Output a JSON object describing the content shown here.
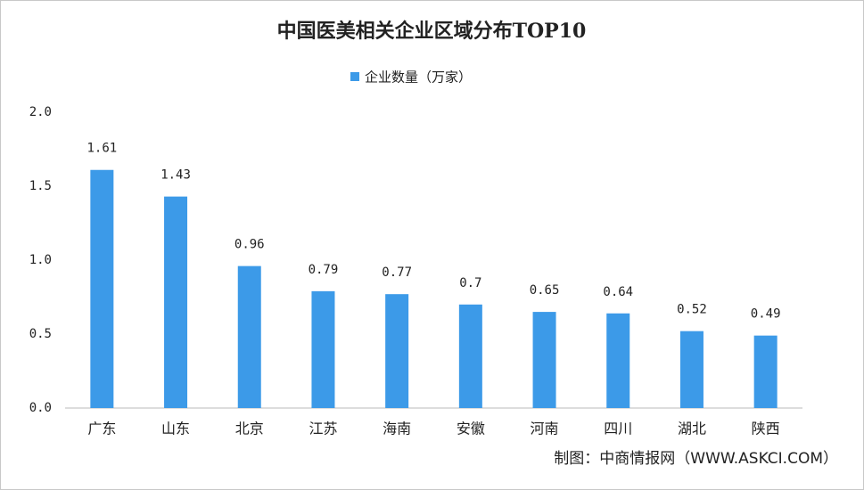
{
  "chart_data": {
    "type": "bar",
    "title": "中国医美相关企业区域分布TOP10",
    "categories": [
      "广东",
      "山东",
      "北京",
      "江苏",
      "海南",
      "安徽",
      "河南",
      "四川",
      "湖北",
      "陕西"
    ],
    "series": [
      {
        "name": "企业数量（万家）",
        "color": "#3c9ae8",
        "values": [
          1.61,
          1.43,
          0.96,
          0.79,
          0.77,
          0.7,
          0.65,
          0.64,
          0.52,
          0.49
        ]
      }
    ],
    "ylim": [
      0,
      2
    ],
    "yticks": [
      {
        "value": 0,
        "label": "0.0"
      },
      0.5,
      {
        "value": 1,
        "label": "1.0"
      },
      1.5,
      {
        "value": 2,
        "label": "2.0"
      }
    ],
    "grid": false,
    "legend": "top",
    "source": "制图：中商情报网（WWW.ASKCI.COM）"
  }
}
